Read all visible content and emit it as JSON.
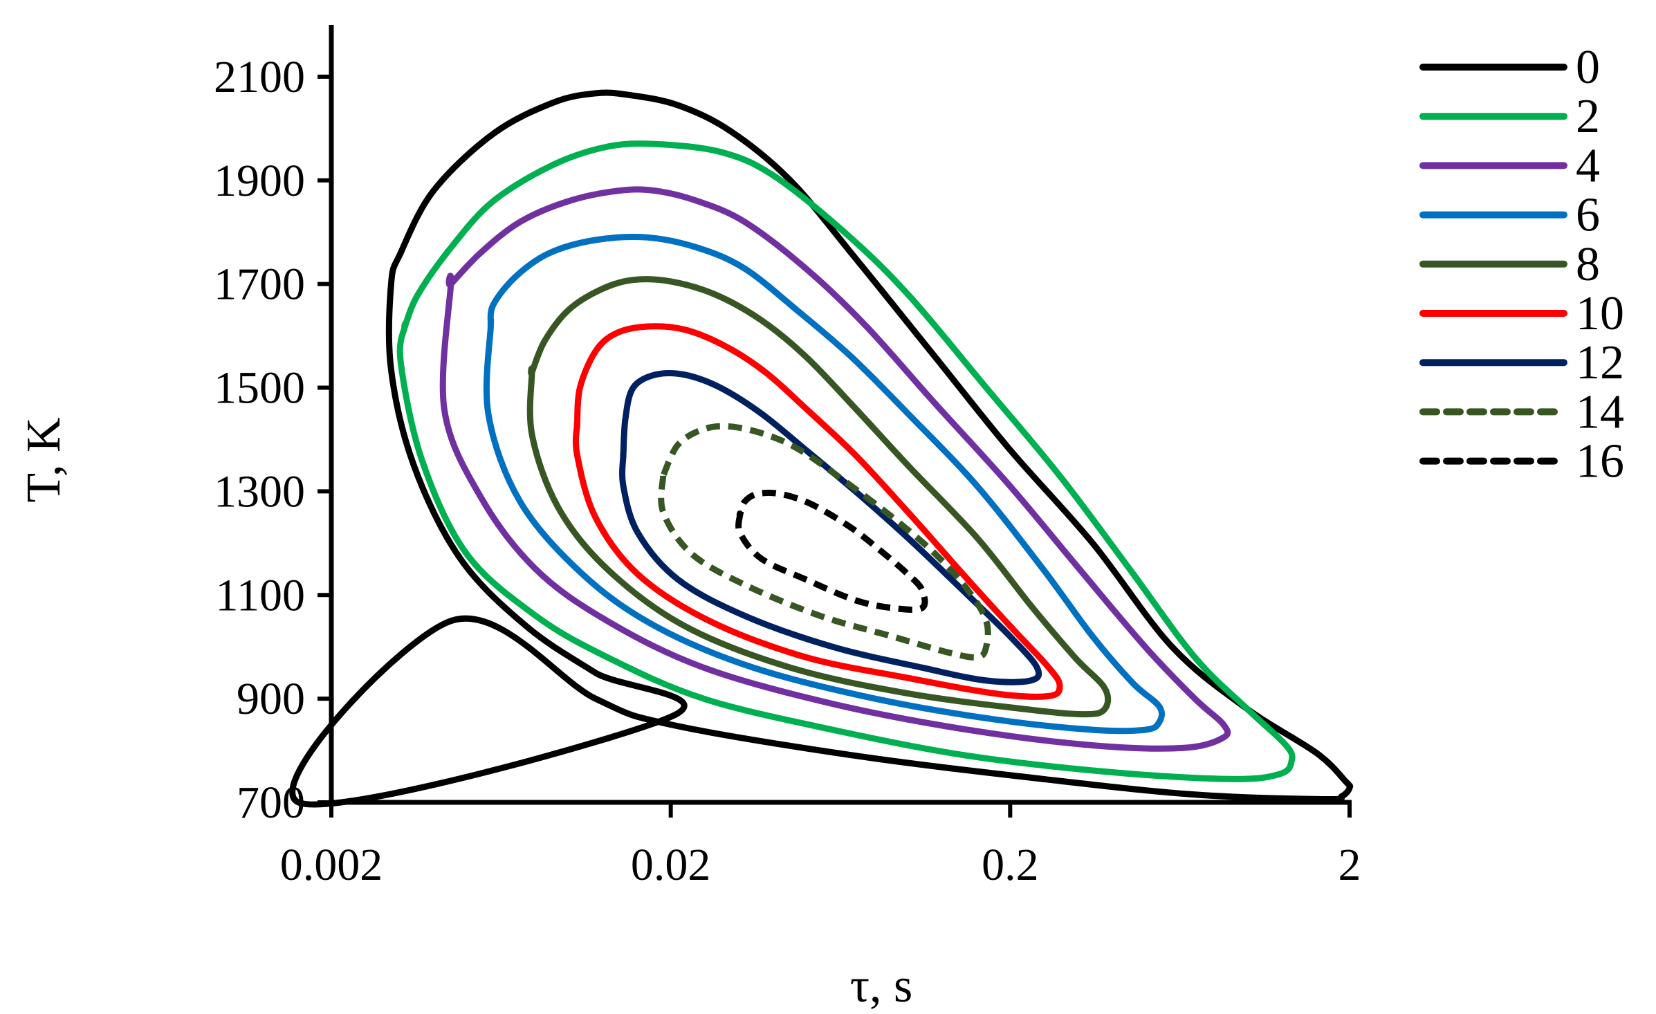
{
  "chart_data": {
    "type": "contour",
    "xlabel": "τ, s",
    "ylabel": "T, K",
    "x_scale": "log",
    "xlim": [
      0.002,
      2
    ],
    "ylim": [
      700,
      2200
    ],
    "x_ticks": [
      {
        "value": 0.002,
        "label": "0.002"
      },
      {
        "value": 0.02,
        "label": "0.02"
      },
      {
        "value": 0.2,
        "label": "0.2"
      },
      {
        "value": 2,
        "label": "2"
      }
    ],
    "y_ticks": [
      {
        "value": 700,
        "label": "700"
      },
      {
        "value": 900,
        "label": "900"
      },
      {
        "value": 1100,
        "label": "1100"
      },
      {
        "value": 1300,
        "label": "1300"
      },
      {
        "value": 1500,
        "label": "1500"
      },
      {
        "value": 1700,
        "label": "1700"
      },
      {
        "value": 1900,
        "label": "1900"
      },
      {
        "value": 2100,
        "label": "2100"
      }
    ],
    "legend_position": "right",
    "series": [
      {
        "name": "0",
        "color": "#000000",
        "dashed": false,
        "points": [
          [
            0.0016,
            700
          ],
          [
            0.0045,
            1050
          ],
          [
            0.012,
            900
          ],
          [
            0.02,
            850
          ],
          [
            0.07,
            790
          ],
          [
            0.25,
            745
          ],
          [
            0.7,
            715
          ],
          [
            1.7,
            706
          ],
          [
            1.9,
            712
          ],
          [
            2.0,
            728
          ],
          [
            1.95,
            740
          ],
          [
            1.6,
            795
          ],
          [
            1.0,
            880
          ],
          [
            0.6,
            1000
          ],
          [
            0.35,
            1200
          ],
          [
            0.2,
            1380
          ],
          [
            0.12,
            1560
          ],
          [
            0.07,
            1750
          ],
          [
            0.045,
            1900
          ],
          [
            0.03,
            1995
          ],
          [
            0.021,
            2045
          ],
          [
            0.015,
            2065
          ],
          [
            0.012,
            2068
          ],
          [
            0.009,
            2050
          ],
          [
            0.006,
            1990
          ],
          [
            0.004,
            1880
          ],
          [
            0.0032,
            1760
          ],
          [
            0.003,
            1700
          ],
          [
            0.003,
            1535
          ],
          [
            0.0035,
            1350
          ],
          [
            0.0048,
            1170
          ],
          [
            0.0075,
            1040
          ],
          [
            0.012,
            950
          ],
          [
            0.02,
            865
          ]
        ]
      },
      {
        "name": "2",
        "color": "#00b050",
        "dashed": false,
        "points": [
          [
            0.0033,
            1620
          ],
          [
            0.0032,
            1550
          ],
          [
            0.0037,
            1360
          ],
          [
            0.005,
            1180
          ],
          [
            0.008,
            1060
          ],
          [
            0.013,
            980
          ],
          [
            0.025,
            900
          ],
          [
            0.06,
            840
          ],
          [
            0.15,
            790
          ],
          [
            0.4,
            758
          ],
          [
            0.9,
            745
          ],
          [
            1.25,
            755
          ],
          [
            1.35,
            780
          ],
          [
            1.3,
            810
          ],
          [
            1.0,
            880
          ],
          [
            0.7,
            980
          ],
          [
            0.45,
            1150
          ],
          [
            0.28,
            1330
          ],
          [
            0.17,
            1500
          ],
          [
            0.1,
            1680
          ],
          [
            0.065,
            1800
          ],
          [
            0.04,
            1910
          ],
          [
            0.028,
            1955
          ],
          [
            0.018,
            1970
          ],
          [
            0.013,
            1965
          ],
          [
            0.009,
            1930
          ],
          [
            0.006,
            1860
          ],
          [
            0.0045,
            1770
          ],
          [
            0.0036,
            1680
          ],
          [
            0.0033,
            1620
          ]
        ]
      },
      {
        "name": "4",
        "color": "#7030a0",
        "dashed": false,
        "points": [
          [
            0.0045,
            1700
          ],
          [
            0.0043,
            1460
          ],
          [
            0.0055,
            1290
          ],
          [
            0.008,
            1150
          ],
          [
            0.013,
            1050
          ],
          [
            0.025,
            960
          ],
          [
            0.06,
            890
          ],
          [
            0.15,
            840
          ],
          [
            0.35,
            810
          ],
          [
            0.65,
            805
          ],
          [
            0.85,
            825
          ],
          [
            0.85,
            850
          ],
          [
            0.7,
            900
          ],
          [
            0.5,
            1000
          ],
          [
            0.32,
            1150
          ],
          [
            0.2,
            1310
          ],
          [
            0.12,
            1470
          ],
          [
            0.075,
            1620
          ],
          [
            0.05,
            1730
          ],
          [
            0.033,
            1820
          ],
          [
            0.024,
            1860
          ],
          [
            0.018,
            1880
          ],
          [
            0.014,
            1880
          ],
          [
            0.01,
            1860
          ],
          [
            0.0072,
            1820
          ],
          [
            0.0055,
            1760
          ],
          [
            0.0045,
            1700
          ]
        ]
      },
      {
        "name": "6",
        "color": "#0070c0",
        "dashed": false,
        "points": [
          [
            0.0059,
            1620
          ],
          [
            0.0058,
            1450
          ],
          [
            0.0072,
            1280
          ],
          [
            0.011,
            1140
          ],
          [
            0.018,
            1040
          ],
          [
            0.035,
            960
          ],
          [
            0.08,
            900
          ],
          [
            0.18,
            860
          ],
          [
            0.35,
            840
          ],
          [
            0.5,
            840
          ],
          [
            0.55,
            855
          ],
          [
            0.55,
            885
          ],
          [
            0.46,
            930
          ],
          [
            0.35,
            1020
          ],
          [
            0.25,
            1150
          ],
          [
            0.16,
            1310
          ],
          [
            0.1,
            1450
          ],
          [
            0.068,
            1560
          ],
          [
            0.047,
            1650
          ],
          [
            0.033,
            1730
          ],
          [
            0.024,
            1770
          ],
          [
            0.017,
            1790
          ],
          [
            0.012,
            1785
          ],
          [
            0.0088,
            1760
          ],
          [
            0.007,
            1715
          ],
          [
            0.006,
            1660
          ],
          [
            0.0059,
            1620
          ]
        ]
      },
      {
        "name": "8",
        "color": "#375623",
        "dashed": false,
        "points": [
          [
            0.0078,
            1530
          ],
          [
            0.0078,
            1410
          ],
          [
            0.0093,
            1270
          ],
          [
            0.013,
            1150
          ],
          [
            0.022,
            1040
          ],
          [
            0.045,
            960
          ],
          [
            0.1,
            910
          ],
          [
            0.22,
            880
          ],
          [
            0.33,
            870
          ],
          [
            0.38,
            880
          ],
          [
            0.38,
            920
          ],
          [
            0.31,
            980
          ],
          [
            0.23,
            1080
          ],
          [
            0.16,
            1210
          ],
          [
            0.1,
            1350
          ],
          [
            0.07,
            1460
          ],
          [
            0.05,
            1560
          ],
          [
            0.037,
            1630
          ],
          [
            0.027,
            1680
          ],
          [
            0.02,
            1705
          ],
          [
            0.0155,
            1708
          ],
          [
            0.0125,
            1690
          ],
          [
            0.01,
            1650
          ],
          [
            0.0085,
            1590
          ],
          [
            0.0078,
            1530
          ]
        ]
      },
      {
        "name": "10",
        "color": "#ff0000",
        "dashed": false,
        "points": [
          [
            0.0106,
            1430
          ],
          [
            0.0106,
            1370
          ],
          [
            0.012,
            1250
          ],
          [
            0.016,
            1140
          ],
          [
            0.026,
            1050
          ],
          [
            0.05,
            980
          ],
          [
            0.1,
            940
          ],
          [
            0.18,
            910
          ],
          [
            0.26,
            905
          ],
          [
            0.28,
            925
          ],
          [
            0.26,
            960
          ],
          [
            0.2,
            1040
          ],
          [
            0.15,
            1130
          ],
          [
            0.1,
            1260
          ],
          [
            0.07,
            1370
          ],
          [
            0.05,
            1460
          ],
          [
            0.038,
            1530
          ],
          [
            0.029,
            1580
          ],
          [
            0.022,
            1612
          ],
          [
            0.017,
            1618
          ],
          [
            0.0138,
            1605
          ],
          [
            0.012,
            1570
          ],
          [
            0.0108,
            1500
          ],
          [
            0.0106,
            1430
          ]
        ]
      },
      {
        "name": "12",
        "color": "#002060",
        "dashed": false,
        "points": [
          [
            0.0145,
            1370
          ],
          [
            0.0145,
            1310
          ],
          [
            0.016,
            1220
          ],
          [
            0.021,
            1130
          ],
          [
            0.033,
            1060
          ],
          [
            0.06,
            1000
          ],
          [
            0.11,
            960
          ],
          [
            0.17,
            935
          ],
          [
            0.23,
            935
          ],
          [
            0.24,
            960
          ],
          [
            0.2,
            1020
          ],
          [
            0.15,
            1100
          ],
          [
            0.1,
            1210
          ],
          [
            0.07,
            1300
          ],
          [
            0.05,
            1380
          ],
          [
            0.037,
            1450
          ],
          [
            0.028,
            1500
          ],
          [
            0.022,
            1525
          ],
          [
            0.018,
            1525
          ],
          [
            0.0155,
            1500
          ],
          [
            0.0147,
            1440
          ],
          [
            0.0145,
            1370
          ]
        ]
      },
      {
        "name": "14",
        "color": "#375623",
        "dashed": true,
        "points": [
          [
            0.019,
            1330
          ],
          [
            0.019,
            1260
          ],
          [
            0.023,
            1180
          ],
          [
            0.033,
            1120
          ],
          [
            0.055,
            1060
          ],
          [
            0.09,
            1020
          ],
          [
            0.13,
            990
          ],
          [
            0.16,
            980
          ],
          [
            0.17,
            1000
          ],
          [
            0.17,
            1050
          ],
          [
            0.15,
            1110
          ],
          [
            0.12,
            1180
          ],
          [
            0.09,
            1250
          ],
          [
            0.065,
            1320
          ],
          [
            0.048,
            1380
          ],
          [
            0.038,
            1410
          ],
          [
            0.03,
            1425
          ],
          [
            0.025,
            1420
          ],
          [
            0.021,
            1390
          ],
          [
            0.019,
            1330
          ]
        ]
      },
      {
        "name": "16",
        "color": "#000000",
        "dashed": true,
        "points": [
          [
            0.032,
            1255
          ],
          [
            0.032,
            1220
          ],
          [
            0.037,
            1170
          ],
          [
            0.05,
            1130
          ],
          [
            0.07,
            1090
          ],
          [
            0.09,
            1075
          ],
          [
            0.11,
            1075
          ],
          [
            0.11,
            1110
          ],
          [
            0.1,
            1140
          ],
          [
            0.085,
            1180
          ],
          [
            0.068,
            1230
          ],
          [
            0.052,
            1275
          ],
          [
            0.042,
            1295
          ],
          [
            0.036,
            1295
          ],
          [
            0.033,
            1280
          ],
          [
            0.032,
            1255
          ]
        ]
      }
    ]
  }
}
